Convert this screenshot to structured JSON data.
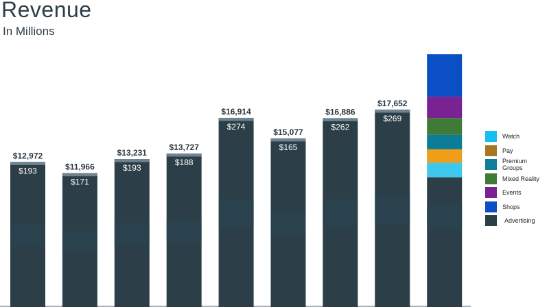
{
  "title": "Revenue",
  "subtitle": "In Millions",
  "colors": {
    "Advertising": "#2c3f48",
    "Shops": "#0a4fc4",
    "Events": "#7b2293",
    "Mixed Reality": "#3f7a37",
    "Premium Groups": "#0c7d96",
    "Pay": "#f09e1a",
    "Watch": "#3fc8ee",
    "top_band": "#6f8391"
  },
  "legend": [
    {
      "label": "Watch",
      "color": "#16bff0"
    },
    {
      "label": "Pay",
      "color": "#a87623"
    },
    {
      "label": "Premium Groups",
      "color": "#0f7f99"
    },
    {
      "label": "Mixed Reality",
      "color": "#3f7a37"
    },
    {
      "label": "Events",
      "color": "#7b2293"
    },
    {
      "label": "Shops",
      "color": "#0a4fc4"
    },
    {
      "label": "Advertising",
      "color": "#2c3f48"
    }
  ],
  "chart_data": {
    "type": "bar",
    "title": "Revenue",
    "subtitle": "In Millions",
    "categories": [
      "",
      "",
      "",
      "",
      "",
      "",
      "",
      "",
      ""
    ],
    "totals": [
      12972,
      11966,
      13231,
      13727,
      16914,
      15077,
      16886,
      17652,
      null
    ],
    "total_labels": [
      "$12,972",
      "$11,966",
      "$13,231",
      "$13,727",
      "$16,914",
      "$15,077",
      "$16,886",
      "$17,652",
      ""
    ],
    "top_segment_values": [
      193,
      171,
      193,
      188,
      274,
      165,
      262,
      269,
      null
    ],
    "top_segment_labels": [
      "$193",
      "$171",
      "$193",
      "$188",
      "$274",
      "$165",
      "$262",
      "$269",
      ""
    ],
    "projected_bar_stack_bottom_to_top": [
      "Advertising",
      "Watch",
      "Pay",
      "Premium Groups",
      "Mixed Reality",
      "Events",
      "Shops"
    ],
    "projected_segment_values_estimated": [
      11600,
      1300,
      1200,
      1300,
      1500,
      1900,
      3800
    ],
    "ylim": [
      0,
      25000
    ],
    "grid": false,
    "legend_position": "right"
  }
}
